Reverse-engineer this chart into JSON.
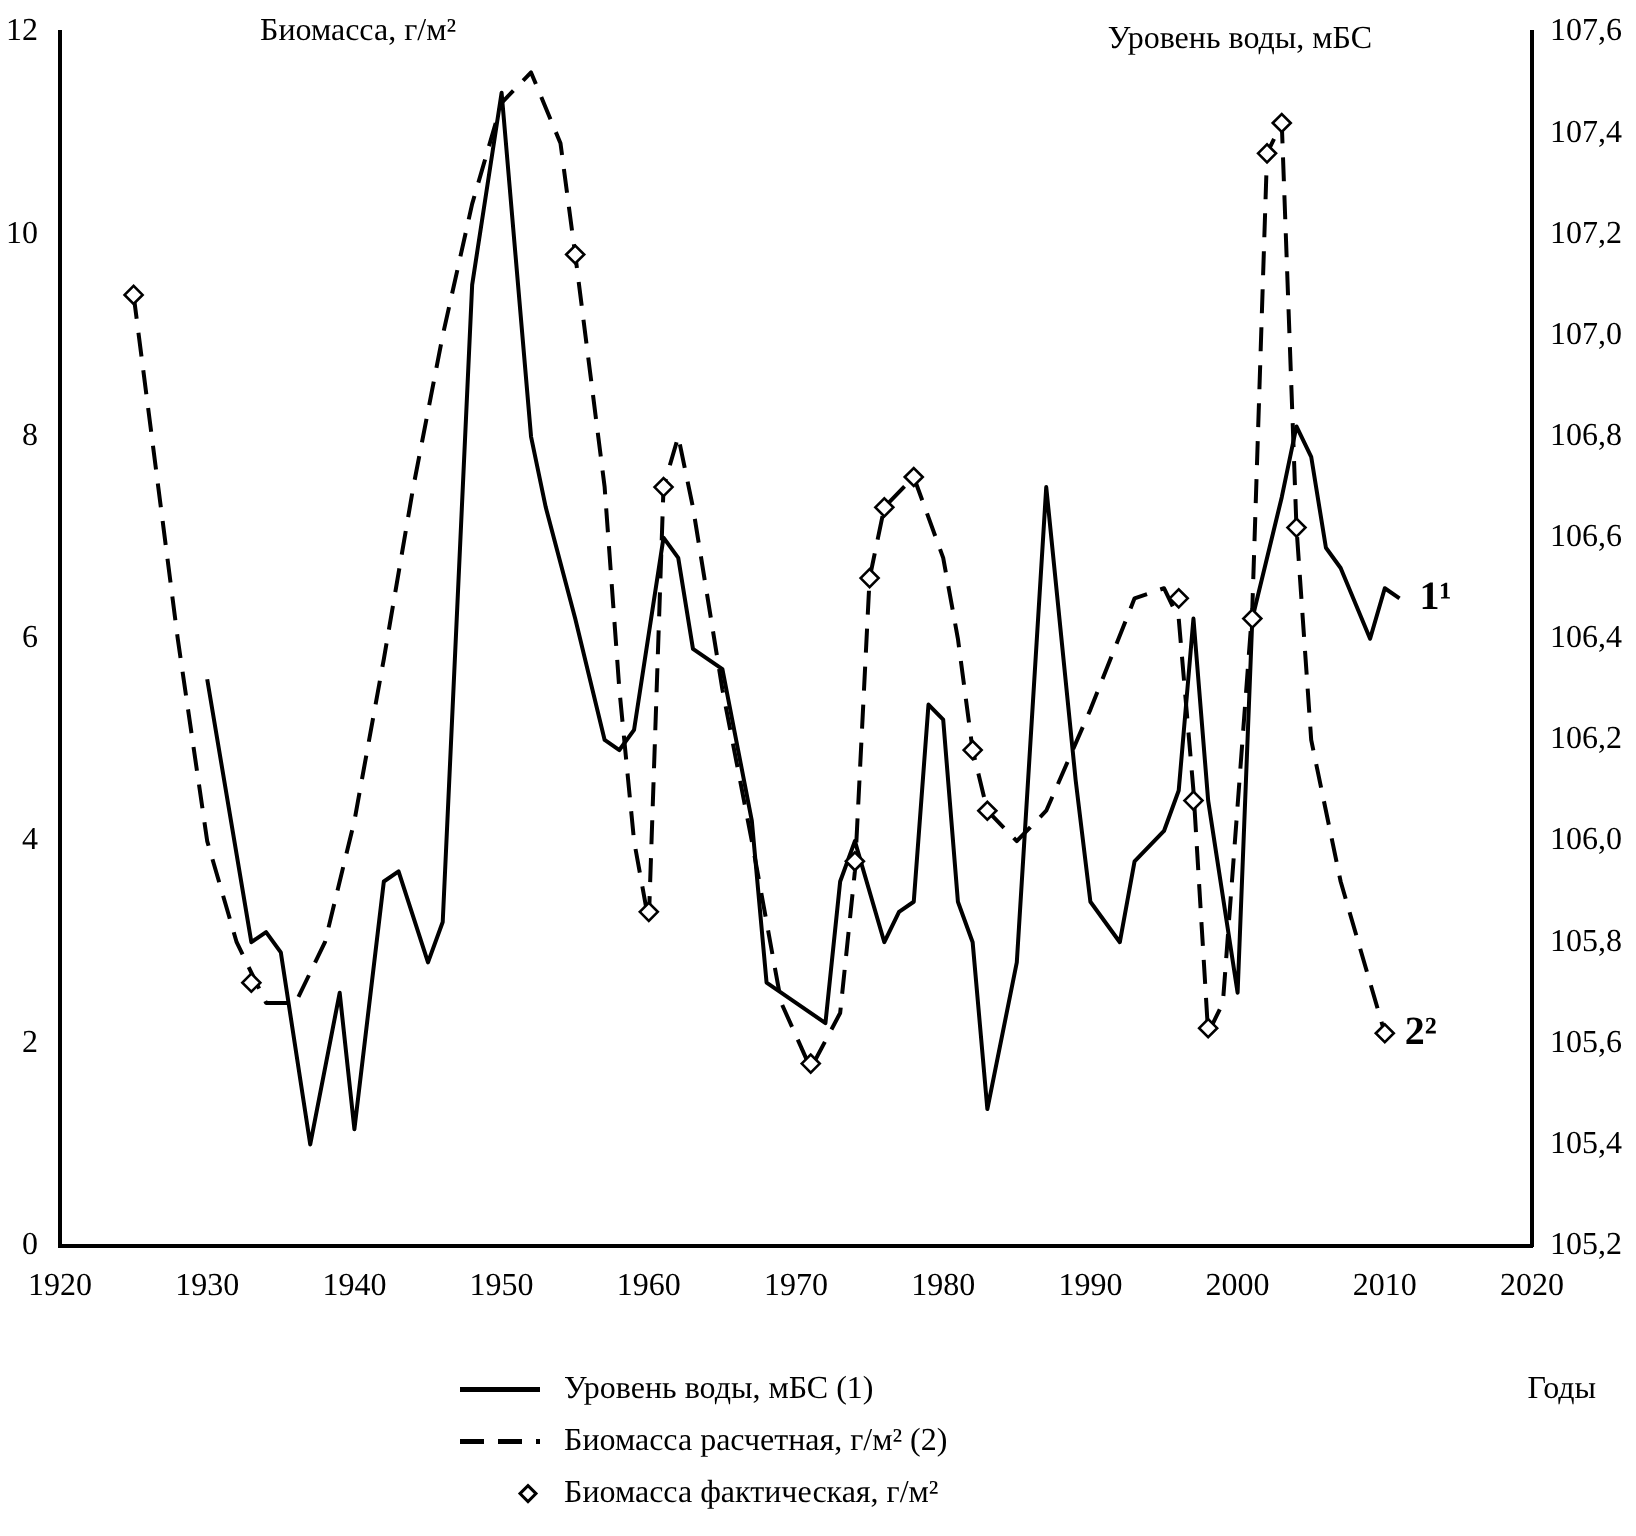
{
  "chart_data": {
    "type": "line",
    "ylabel": "Биомасса, г/м²",
    "y2label": "Уровень воды, мБС",
    "xlabel": "Годы",
    "legend": "bottom",
    "grid": false,
    "xlim": [
      1920,
      2020
    ],
    "xticks": [
      1920,
      1930,
      1940,
      1950,
      1960,
      1970,
      1980,
      1990,
      2000,
      2010,
      2020
    ],
    "ylim": [
      0,
      12
    ],
    "yticks": [
      0,
      2,
      4,
      6,
      8,
      10,
      12
    ],
    "y2lim": [
      105.2,
      107.6
    ],
    "y2ticks": [
      {
        "value": 105.2,
        "label": "105,2"
      },
      {
        "value": 105.4,
        "label": "105,4"
      },
      {
        "value": 105.6,
        "label": "105,6"
      },
      {
        "value": 105.8,
        "label": "105,8"
      },
      {
        "value": 106.0,
        "label": "106,0"
      },
      {
        "value": 106.2,
        "label": "106,2"
      },
      {
        "value": 106.4,
        "label": "106,4"
      },
      {
        "value": 106.6,
        "label": "106,6"
      },
      {
        "value": 106.8,
        "label": "106,8"
      },
      {
        "value": 107.0,
        "label": "107,0"
      },
      {
        "value": 107.2,
        "label": "107,2"
      },
      {
        "value": 107.4,
        "label": "107,4"
      },
      {
        "value": 107.6,
        "label": "107,6"
      }
    ],
    "series": [
      {
        "name": "Уровень воды, мБС (1)",
        "type": "line",
        "axis": "y2",
        "color": "#000000",
        "line_style": "solid",
        "marker": "none",
        "x": [
          1930,
          1933,
          1934,
          1935,
          1937,
          1939,
          1940,
          1942,
          1943,
          1945,
          1946,
          1948,
          1950,
          1952,
          1953,
          1955,
          1957,
          1958,
          1959,
          1961,
          1962,
          1963,
          1965,
          1967,
          1968,
          1970,
          1972,
          1973,
          1974,
          1976,
          1977,
          1978,
          1979,
          1980,
          1981,
          1982,
          1983,
          1985,
          1987,
          1989,
          1990,
          1992,
          1993,
          1995,
          1996,
          1997,
          1998,
          2000,
          2001,
          2003,
          2004,
          2005,
          2006,
          2007,
          2009,
          2010,
          2011
        ],
        "values": [
          106.32,
          105.8,
          105.82,
          105.78,
          105.4,
          105.7,
          105.43,
          105.92,
          105.94,
          105.76,
          105.84,
          107.1,
          107.48,
          106.8,
          106.66,
          106.44,
          106.2,
          106.18,
          106.22,
          106.6,
          106.56,
          106.38,
          106.34,
          106.04,
          105.72,
          105.68,
          105.64,
          105.92,
          106.0,
          105.8,
          105.86,
          105.88,
          106.27,
          106.24,
          105.88,
          105.8,
          105.47,
          105.76,
          106.7,
          106.12,
          105.88,
          105.8,
          105.96,
          106.02,
          106.1,
          106.44,
          106.08,
          105.7,
          106.44,
          106.68,
          106.82,
          106.76,
          106.58,
          106.54,
          106.4,
          106.5,
          106.48
        ]
      },
      {
        "name": "Биомасса расчетная, г/м² (2)",
        "type": "line",
        "color": "#000000",
        "line_style": "dashed",
        "marker": "none",
        "x": [
          1925,
          1928,
          1930,
          1932,
          1934,
          1936,
          1938,
          1940,
          1942,
          1944,
          1946,
          1948,
          1950,
          1952,
          1954,
          1955,
          1957,
          1958,
          1959,
          1960,
          1961,
          1962,
          1963,
          1965,
          1967,
          1969,
          1971,
          1973,
          1974,
          1975,
          1976,
          1978,
          1980,
          1981,
          1982,
          1983,
          1985,
          1987,
          1990,
          1993,
          1995,
          1996,
          1997,
          1998,
          1999,
          2001,
          2002,
          2003,
          2004,
          2005,
          2007,
          2010
        ],
        "values": [
          9.4,
          6.0,
          4.0,
          3.0,
          2.4,
          2.4,
          3.0,
          4.2,
          5.8,
          7.5,
          9.0,
          10.3,
          11.3,
          11.6,
          10.9,
          9.8,
          7.5,
          5.5,
          4.0,
          3.2,
          7.5,
          8.0,
          7.3,
          5.5,
          4.0,
          2.4,
          1.75,
          2.3,
          3.7,
          6.6,
          7.3,
          7.6,
          6.8,
          6.0,
          4.9,
          4.3,
          4.0,
          4.3,
          5.3,
          6.4,
          6.5,
          6.2,
          4.5,
          2.1,
          2.4,
          6.3,
          10.8,
          11.1,
          7.1,
          5.0,
          3.6,
          2.1
        ]
      },
      {
        "name": "Биомасса фактическая, г/м²",
        "type": "scatter",
        "color": "#000000",
        "marker": "diamond",
        "x": [
          1925,
          1933,
          1955,
          1960,
          1961,
          1971,
          1974,
          1975,
          1976,
          1978,
          1982,
          1983,
          1996,
          1997,
          1998,
          2001,
          2002,
          2003,
          2004,
          2010
        ],
        "values": [
          9.4,
          2.6,
          9.8,
          3.3,
          7.5,
          1.8,
          3.8,
          6.6,
          7.3,
          7.6,
          4.9,
          4.3,
          6.4,
          4.4,
          2.15,
          6.2,
          10.8,
          11.1,
          7.1,
          2.1
        ]
      }
    ],
    "annotations": [
      {
        "text": "1¹",
        "x": 2011,
        "y": 6.4
      },
      {
        "text": "2²",
        "x": 2010,
        "y": 2.1
      }
    ]
  }
}
